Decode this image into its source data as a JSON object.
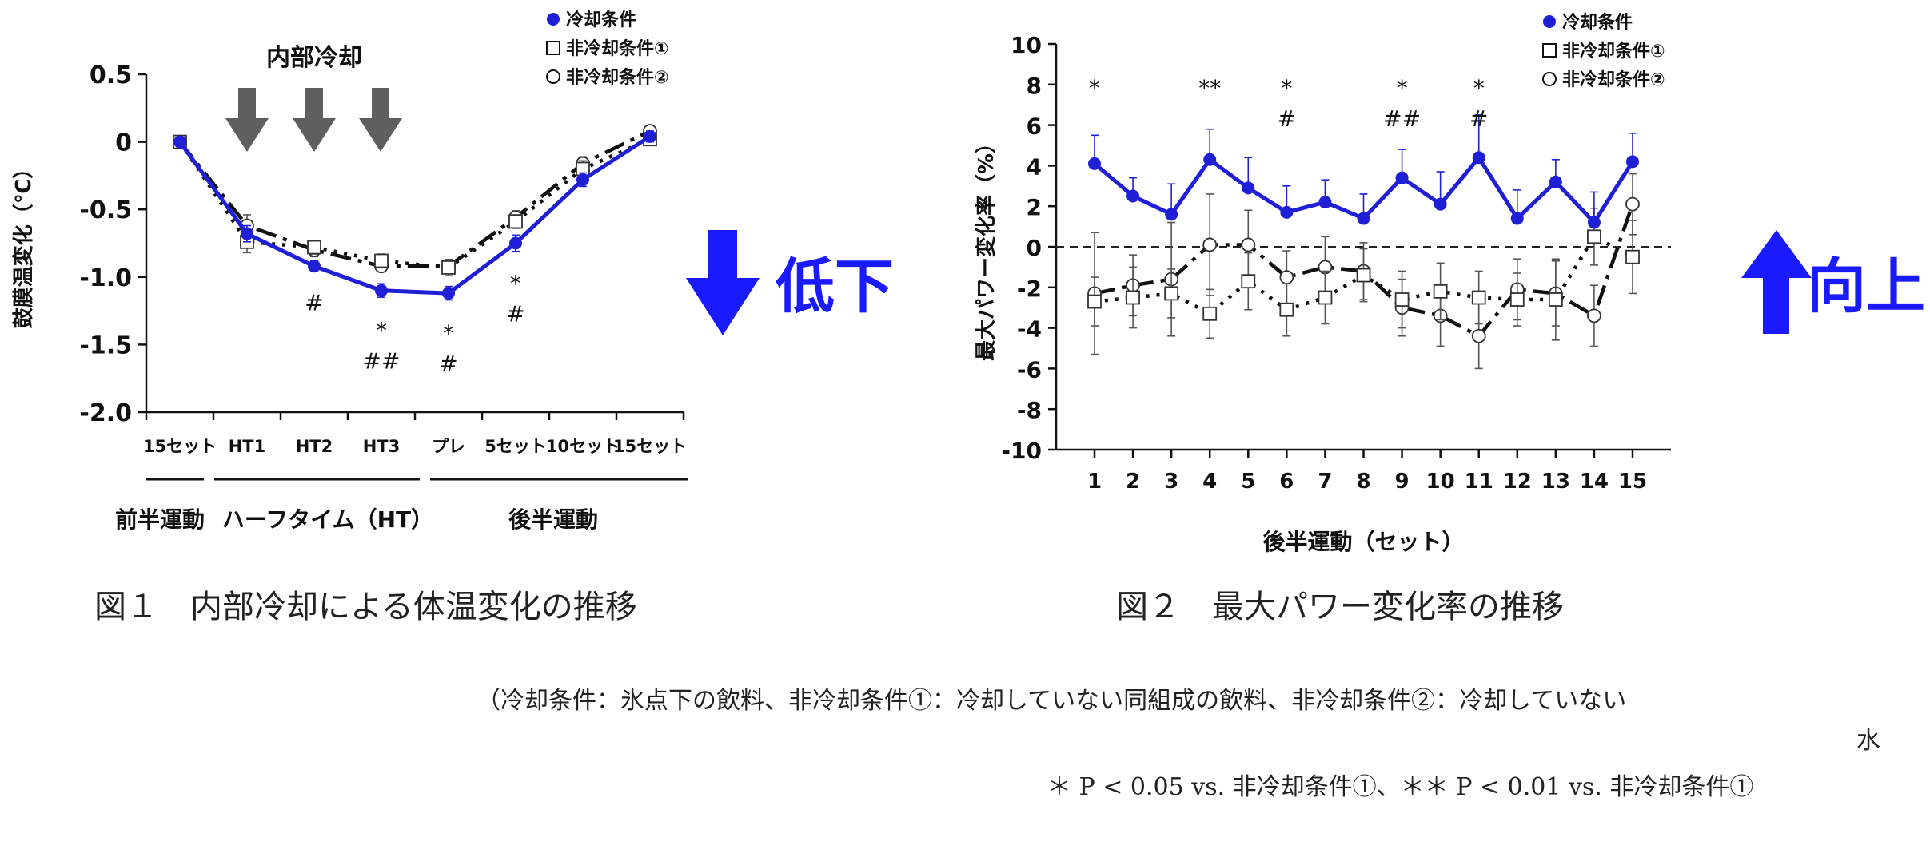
{
  "chart_data": [
    {
      "type": "line",
      "ylabel": "鼓膜温変化（℃）",
      "ylim": [
        -2.0,
        0.5
      ],
      "yticks": [
        "0.5",
        "0",
        "-0.5",
        "-1.0",
        "-1.5",
        "-2.0"
      ],
      "categories": [
        "15セット",
        "HT1",
        "HT2",
        "HT3",
        "プレ",
        "5セット",
        "10セット",
        "15セット"
      ],
      "groups": [
        "前半運動",
        "ハーフタイム（HT）",
        "後半運動"
      ],
      "annotation": "内部冷却",
      "series": [
        {
          "name": "冷却条件",
          "values": [
            0,
            -0.68,
            -0.92,
            -1.1,
            -1.12,
            -0.75,
            -0.28,
            0.04
          ],
          "err": [
            0,
            0.06,
            0.04,
            0.05,
            0.05,
            0.06,
            0.05,
            0.04
          ]
        },
        {
          "name": "非冷却条件①",
          "values": [
            0,
            -0.74,
            -0.78,
            -0.88,
            -0.93,
            -0.59,
            -0.2,
            0.02
          ],
          "err": [
            0,
            0.08,
            0.05,
            0.05,
            0.06,
            0.05,
            0.06,
            0.04
          ]
        },
        {
          "name": "非冷却条件②",
          "values": [
            0,
            -0.62,
            -0.8,
            -0.92,
            -0.92,
            -0.56,
            -0.16,
            0.08
          ],
          "err": [
            0,
            0.08,
            0.05,
            0.04,
            0.05,
            0.05,
            0.05,
            0.04
          ]
        }
      ],
      "sig_marks": [
        {
          "index": 2,
          "lines": [
            "#"
          ]
        },
        {
          "index": 3,
          "lines": [
            "*",
            "##"
          ]
        },
        {
          "index": 4,
          "lines": [
            "*",
            "#"
          ]
        },
        {
          "index": 5,
          "lines": [
            "*",
            "#"
          ]
        }
      ],
      "side_label": "低下",
      "side_color": "#1a1aff",
      "caption": "図１　内部冷却による体温変化の推移"
    },
    {
      "type": "line",
      "ylabel": "最大パワー変化率（%）",
      "xlabel": "後半運動（セット）",
      "ylim": [
        -10,
        10
      ],
      "yticks": [
        "10",
        "8",
        "6",
        "4",
        "2",
        "0",
        "-2",
        "-4",
        "-6",
        "-8",
        "-10"
      ],
      "categories": [
        "1",
        "2",
        "3",
        "4",
        "5",
        "6",
        "7",
        "8",
        "9",
        "10",
        "11",
        "12",
        "13",
        "14",
        "15"
      ],
      "series": [
        {
          "name": "冷却条件",
          "values": [
            4.1,
            2.5,
            1.6,
            4.3,
            2.9,
            1.7,
            2.2,
            1.4,
            3.4,
            2.1,
            4.4,
            1.4,
            3.2,
            1.2,
            4.2
          ],
          "err": [
            1.4,
            0.9,
            1.5,
            1.5,
            1.5,
            1.3,
            1.1,
            1.2,
            1.4,
            1.6,
            2.1,
            1.4,
            1.1,
            1.5,
            1.4
          ]
        },
        {
          "name": "非冷却条件①",
          "values": [
            -2.7,
            -2.5,
            -2.3,
            -3.3,
            -1.7,
            -3.1,
            -2.5,
            -1.4,
            -2.6,
            -2.2,
            -2.5,
            -2.6,
            -2.6,
            0.5,
            -0.5
          ],
          "err": [
            1.2,
            1.5,
            1.2,
            1.2,
            1.4,
            1.3,
            1.3,
            1.3,
            1.4,
            1.4,
            1.3,
            1.3,
            2.0,
            1.4,
            1.8
          ]
        },
        {
          "name": "非冷却条件②",
          "values": [
            -2.3,
            -1.9,
            -1.6,
            0.1,
            0.1,
            -1.5,
            -1.0,
            -1.2,
            -3.0,
            -3.4,
            -4.4,
            -2.1,
            -2.3,
            -3.4,
            2.1
          ],
          "err": [
            3.0,
            1.5,
            2.8,
            2.5,
            1.7,
            1.3,
            1.5,
            1.4,
            1.4,
            1.5,
            1.6,
            1.5,
            1.6,
            1.5,
            1.5
          ]
        }
      ],
      "sig_marks": [
        {
          "index": 0,
          "lines": [
            "*"
          ]
        },
        {
          "index": 3,
          "lines": [
            "**"
          ]
        },
        {
          "index": 5,
          "lines": [
            "*",
            "#"
          ]
        },
        {
          "index": 8,
          "lines": [
            "*",
            "##"
          ]
        },
        {
          "index": 10,
          "lines": [
            "*",
            "#"
          ]
        }
      ],
      "side_label": "向上",
      "side_color": "#1a1aff",
      "caption": "図２　最大パワー変化率の推移"
    }
  ],
  "legend": [
    "冷却条件",
    "非冷却条件①",
    "非冷却条件②"
  ],
  "footnote_line1": "（冷却条件：氷点下の飲料、非冷却条件①：冷却していない同組成の飲料、非冷却条件②：冷却していない",
  "footnote_line2": "水",
  "footnote_line3": "＊ P < 0.05 vs. 非冷却条件①、＊＊ P < 0.01 vs. 非冷却条件①",
  "colors": {
    "cooling": "#1f1fd6",
    "noncool": "#111111",
    "arrow_gray": "#5f5f5f"
  }
}
